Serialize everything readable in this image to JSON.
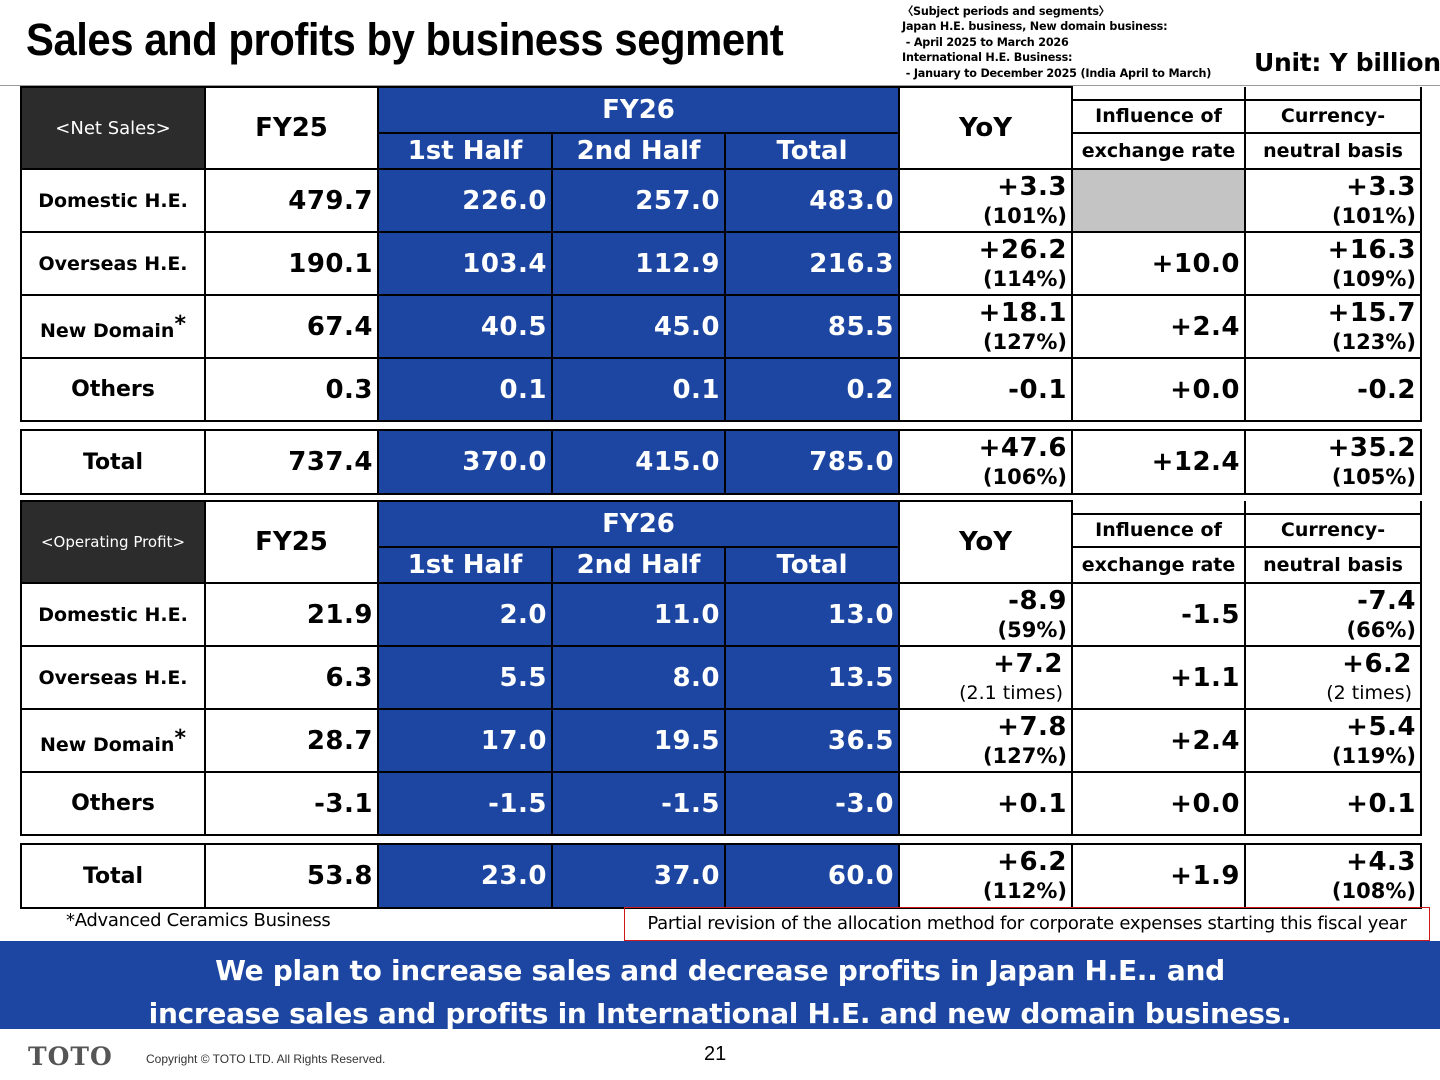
{
  "title": "Sales and profits by business segment",
  "subject_note": "〈Subject periods and segments〉\nJapan H.E. business, New domain business:\n - April 2025 to March 2026\nInternational H.E. Business:\n - January to December 2025 (India April to March)",
  "unit": "Unit: Y billion",
  "headers": {
    "fy25": "FY25",
    "fy26": "FY26",
    "first_half": "1st Half",
    "second_half": "2nd Half",
    "total": "Total",
    "yoy": "YoY",
    "influence_1": "Influence of",
    "influence_2": "exchange rate",
    "neutral_1": "Currency-",
    "neutral_2": "neutral basis"
  },
  "net_sales": {
    "label": "<Net Sales>",
    "rows": [
      {
        "name": "Domestic H.E.",
        "fy25": "479.7",
        "h1": "226.0",
        "h2": "257.0",
        "total": "483.0",
        "yoy": "+3.3",
        "yoy_pct": "(101%)",
        "fx": "",
        "neutral": "+3.3",
        "neutral_pct": "(101%)"
      },
      {
        "name": "Overseas H.E.",
        "fy25": "190.1",
        "h1": "103.4",
        "h2": "112.9",
        "total": "216.3",
        "yoy": "+26.2",
        "yoy_pct": "(114%)",
        "fx": "+10.0",
        "neutral": "+16.3",
        "neutral_pct": "(109%)"
      },
      {
        "name": "New Domain",
        "fy25": "67.4",
        "h1": "40.5",
        "h2": "45.0",
        "total": "85.5",
        "yoy": "+18.1",
        "yoy_pct": "(127%)",
        "fx": "+2.4",
        "neutral": "+15.7",
        "neutral_pct": "(123%)"
      },
      {
        "name": "Others",
        "fy25": "0.3",
        "h1": "0.1",
        "h2": "0.1",
        "total": "0.2",
        "yoy": "-0.1",
        "yoy_pct": "",
        "fx": "+0.0",
        "neutral": "-0.2",
        "neutral_pct": ""
      }
    ],
    "total": {
      "name": "Total",
      "fy25": "737.4",
      "h1": "370.0",
      "h2": "415.0",
      "total": "785.0",
      "yoy": "+47.6",
      "yoy_pct": "(106%)",
      "fx": "+12.4",
      "neutral": "+35.2",
      "neutral_pct": "(105%)"
    }
  },
  "operating_profit": {
    "label": "<Operating Profit>",
    "rows": [
      {
        "name": "Domestic H.E.",
        "fy25": "21.9",
        "h1": "2.0",
        "h2": "11.0",
        "total": "13.0",
        "yoy": "-8.9",
        "yoy_pct": "(59%)",
        "fx": "-1.5",
        "neutral": "-7.4",
        "neutral_pct": "(66%)"
      },
      {
        "name": "Overseas H.E.",
        "fy25": "6.3",
        "h1": "5.5",
        "h2": "8.0",
        "total": "13.5",
        "yoy": "+7.2",
        "yoy_pct": "(2.1 times)",
        "fx": "+1.1",
        "neutral": "+6.2",
        "neutral_pct": "(2 times)"
      },
      {
        "name": "New Domain",
        "fy25": "28.7",
        "h1": "17.0",
        "h2": "19.5",
        "total": "36.5",
        "yoy": "+7.8",
        "yoy_pct": "(127%)",
        "fx": "+2.4",
        "neutral": "+5.4",
        "neutral_pct": "(119%)"
      },
      {
        "name": "Others",
        "fy25": "-3.1",
        "h1": "-1.5",
        "h2": "-1.5",
        "total": "-3.0",
        "yoy": "+0.1",
        "yoy_pct": "",
        "fx": "+0.0",
        "neutral": "+0.1",
        "neutral_pct": ""
      }
    ],
    "total": {
      "name": "Total",
      "fy25": "53.8",
      "h1": "23.0",
      "h2": "37.0",
      "total": "60.0",
      "yoy": "+6.2",
      "yoy_pct": "(112%)",
      "fx": "+1.9",
      "neutral": "+4.3",
      "neutral_pct": "(108%)"
    }
  },
  "footnote": "*Advanced Ceramics Business",
  "revision_note": "Partial revision of the allocation method for corporate expenses starting this fiscal year",
  "banner_line1": "We plan to increase sales and decrease profits in Japan H.E.. and",
  "banner_line2": "increase sales and profits in International H.E. and new domain business.",
  "logo": "TOTO",
  "copyright": "Copyright © TOTO LTD. All Rights Reserved.",
  "page_number": "21",
  "colors": {
    "blue": "#1c46a1",
    "dark": "#2c2c2c",
    "gray": "#c4c4c4",
    "red": "#d01818"
  }
}
